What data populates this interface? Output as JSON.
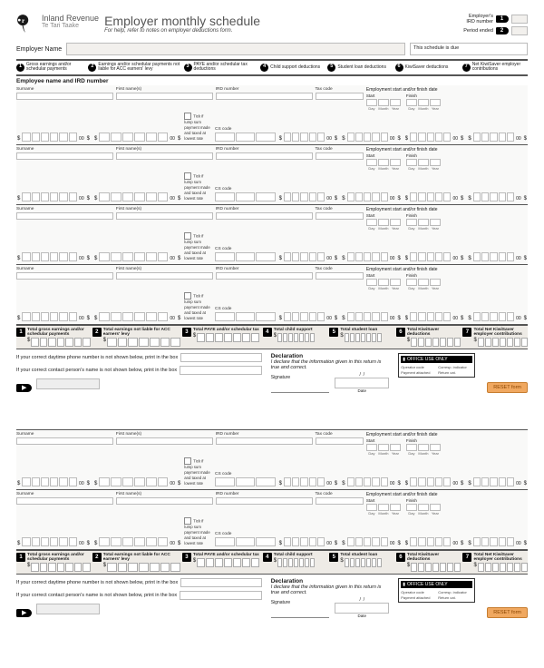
{
  "brand": {
    "en": "Inland Revenue",
    "mi": "Te Tari Taake"
  },
  "title": "Employer monthly schedule",
  "title_sub": "For help, refer to notes on employer deductions form.",
  "hdr_right": {
    "ird_label": "Employer's\nIRD number",
    "period_label": "Period ended",
    "num1": "1",
    "num2": "2"
  },
  "employer_name_label": "Employer Name",
  "due_label": "This schedule is due",
  "columns": [
    {
      "n": "1",
      "t": "Gross earnings and/or schedular payments"
    },
    {
      "n": "2",
      "t": "Earnings and/or schedular payments not liable for ACC earners' levy"
    },
    {
      "n": "3",
      "t": "PAYE and/or schedular tax deductions"
    },
    {
      "n": "4",
      "t": "Child support deductions"
    },
    {
      "n": "5",
      "t": "Student loan deductions"
    },
    {
      "n": "6",
      "t": "KiwiSaver deductions"
    },
    {
      "n": "7",
      "t": "Net KiwiSaver employer contributions"
    }
  ],
  "emp_section_title": "Employee name and IRD number",
  "emp_labels": {
    "surname": "Surname",
    "firstname": "First name(s)",
    "ird": "IRD number",
    "tax": "Tax code",
    "cs": "CS code",
    "start": "Start",
    "finish": "Finish",
    "day": "Day",
    "month": "Month",
    "year": "Year",
    "lump": "Tick if lump sum payment made and taxed at lowest rate",
    "emp_dates": "Employment start and/or finish date"
  },
  "emp_rows_page1": 4,
  "emp_rows_page2": 2,
  "totals": [
    {
      "n": "1",
      "t": "Total gross earnings and/or schedular payments"
    },
    {
      "n": "2",
      "t": "Total earnings not liable for ACC earners' levy"
    },
    {
      "n": "3",
      "t": "Total PAYE and/or schedular tax"
    },
    {
      "n": "4",
      "t": "Total child support"
    },
    {
      "n": "5",
      "t": "Total student loan"
    },
    {
      "n": "6",
      "t": "Total KiwiSaver deductions"
    },
    {
      "n": "7",
      "t": "Total Net KiwiSaver employer contributions"
    }
  ],
  "contact": {
    "phone": "If your correct daytime phone number is not shown below, print in the box",
    "name": "If your correct contact person's name is not shown below, print in the box"
  },
  "declaration": {
    "head": "Declaration",
    "text": "I declare that the information given in this return is true and correct.",
    "sig": "Signature",
    "date": "Date"
  },
  "office_only": {
    "head": "OFFICE USE ONLY",
    "items": [
      "Operator code",
      "Corresp. indicator",
      "Payment attached",
      "Return cat."
    ]
  },
  "reset": "RESET form",
  "arrow": "▶",
  "ds": "$",
  "slash": "/",
  "cents_sep": "00",
  "colors": {
    "bg": "#ffffff",
    "form_bg": "#f9f9f8",
    "totals_bg": "#eeebe6",
    "border": "#bbbbbb",
    "heavy": "#555555",
    "black": "#000000",
    "reset_bg": "#f0a860",
    "reset_border": "#c77e30"
  }
}
